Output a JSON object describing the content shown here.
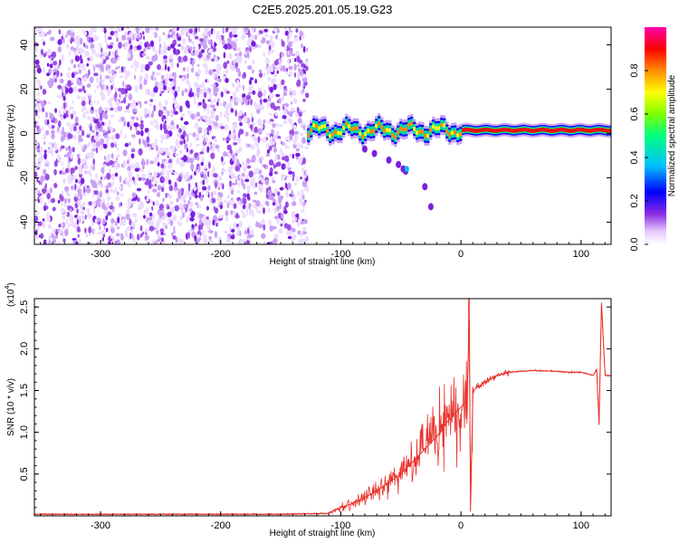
{
  "title": "C2E5.2025.201.05.19.G23",
  "chart_data": [
    {
      "type": "heatmap",
      "xlabel": "Height of straight line (km)",
      "ylabel": "Frequency (Hz)",
      "xlim": [
        -355,
        125
      ],
      "ylim": [
        -50,
        48
      ],
      "xticks": [
        "-300",
        "-200",
        "-100",
        "0",
        "100"
      ],
      "yticks": [
        "-40",
        "-20",
        "0",
        "20",
        "40"
      ],
      "colorbar": {
        "label": "Normalized spectral amplitude",
        "range": [
          0,
          1
        ],
        "ticks": [
          "0.0",
          "0.2",
          "0.4",
          "0.6",
          "0.8"
        ],
        "colors": [
          "#ffffff",
          "#e4c8ff",
          "#8a2be2",
          "#0000ff",
          "#00bfff",
          "#00ff7f",
          "#7fff00",
          "#ffff00",
          "#ff8c00",
          "#ff0000",
          "#ff00aa"
        ]
      },
      "regions": [
        {
          "name": "noise",
          "x_range": [
            -355,
            -128
          ],
          "y_range": [
            -50,
            48
          ],
          "level": 0.1
        },
        {
          "name": "signal",
          "x_range": [
            -128,
            125
          ],
          "y_center": 1.5,
          "level": 0.95
        },
        {
          "name": "trail",
          "x_range": [
            -75,
            -20
          ],
          "y_range": [
            -33,
            -5
          ],
          "level": 0.2
        }
      ]
    },
    {
      "type": "line",
      "xlabel": "Height of straight line (km)",
      "ylabel": "SNR (10 * v/v)",
      "yscale_label": "(x10",
      "yscale_exp": "4",
      "xlim": [
        -355,
        125
      ],
      "ylim": [
        0,
        2.6
      ],
      "xticks": [
        "-300",
        "-200",
        "-100",
        "0",
        "100"
      ],
      "yticks": [
        "0.5",
        "1.0",
        "1.5",
        "2.0",
        "2.5"
      ],
      "color": "#e8302a",
      "series": [
        {
          "x": [
            -355,
            -300,
            -250,
            -200,
            -150,
            -110,
            -100,
            -90,
            -80,
            -70,
            -60,
            -50,
            -40,
            -30,
            -20,
            -10,
            0,
            5,
            7,
            8,
            10,
            20,
            30,
            40,
            60,
            80,
            90,
            100,
            105,
            110,
            113,
            115,
            117,
            120,
            125
          ],
          "y": [
            0.02,
            0.02,
            0.02,
            0.02,
            0.02,
            0.03,
            0.1,
            0.15,
            0.22,
            0.3,
            0.4,
            0.5,
            0.65,
            0.8,
            0.95,
            1.15,
            1.3,
            1.38,
            2.35,
            0.05,
            1.5,
            1.6,
            1.68,
            1.72,
            1.74,
            1.73,
            1.72,
            1.72,
            1.7,
            1.68,
            1.75,
            1.1,
            2.55,
            1.68,
            1.68
          ]
        }
      ]
    }
  ]
}
